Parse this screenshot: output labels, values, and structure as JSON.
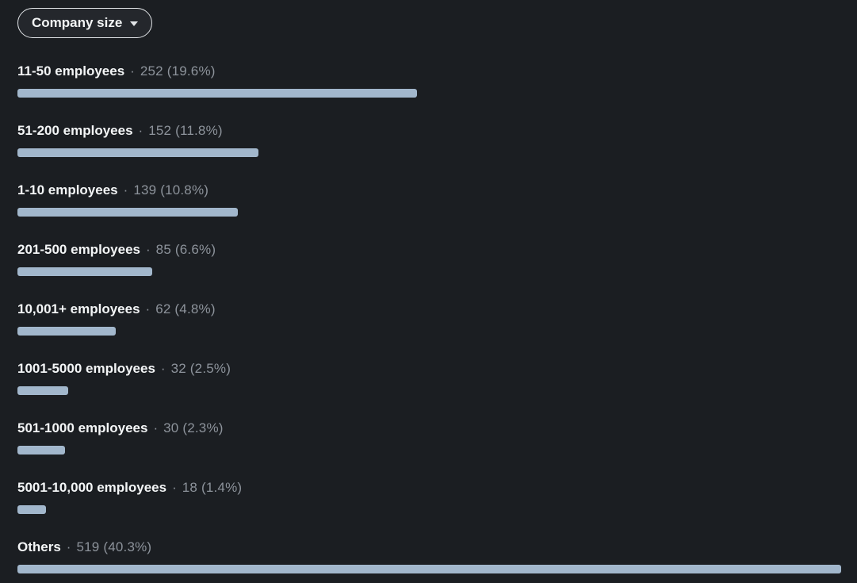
{
  "filter_button": {
    "label": "Company size",
    "icon": "chevron-down-icon"
  },
  "separator": "·",
  "colors": {
    "background": "#1b1e22",
    "bar": "#a2b7cc",
    "label_text": "#f3f5f6",
    "value_text": "#8d939b",
    "button_border": "#dfe2e5"
  },
  "items": [
    {
      "label": "11-50 employees",
      "count": 252,
      "percent": "19.6%",
      "value_text": "252 (19.6%)"
    },
    {
      "label": "51-200 employees",
      "count": 152,
      "percent": "11.8%",
      "value_text": "152 (11.8%)"
    },
    {
      "label": "1-10 employees",
      "count": 139,
      "percent": "10.8%",
      "value_text": "139 (10.8%)"
    },
    {
      "label": "201-500 employees",
      "count": 85,
      "percent": "6.6%",
      "value_text": "85 (6.6%)"
    },
    {
      "label": "10,001+ employees",
      "count": 62,
      "percent": "4.8%",
      "value_text": "62 (4.8%)"
    },
    {
      "label": "1001-5000 employees",
      "count": 32,
      "percent": "2.5%",
      "value_text": "32 (2.5%)"
    },
    {
      "label": "501-1000 employees",
      "count": 30,
      "percent": "2.3%",
      "value_text": "30 (2.3%)"
    },
    {
      "label": "5001-10,000 employees",
      "count": 18,
      "percent": "1.4%",
      "value_text": "18 (1.4%)"
    },
    {
      "label": "Others",
      "count": 519,
      "percent": "40.3%",
      "value_text": "519 (40.3%)"
    }
  ],
  "chart_data": {
    "type": "bar",
    "orientation": "horizontal",
    "title": "Company size",
    "categories": [
      "11-50 employees",
      "51-200 employees",
      "1-10 employees",
      "201-500 employees",
      "10,001+ employees",
      "1001-5000 employees",
      "501-1000 employees",
      "5001-10,000 employees",
      "Others"
    ],
    "values": [
      252,
      152,
      139,
      85,
      62,
      32,
      30,
      18,
      519
    ],
    "percentages": [
      19.6,
      11.8,
      10.8,
      6.6,
      4.8,
      2.5,
      2.3,
      1.4,
      40.3
    ],
    "value_label_format": "count (percent)",
    "bars_scaled_to_max_value": true,
    "bar_color": "#a2b7cc",
    "background_color": "#1b1e22",
    "grid": false,
    "legend": false
  }
}
